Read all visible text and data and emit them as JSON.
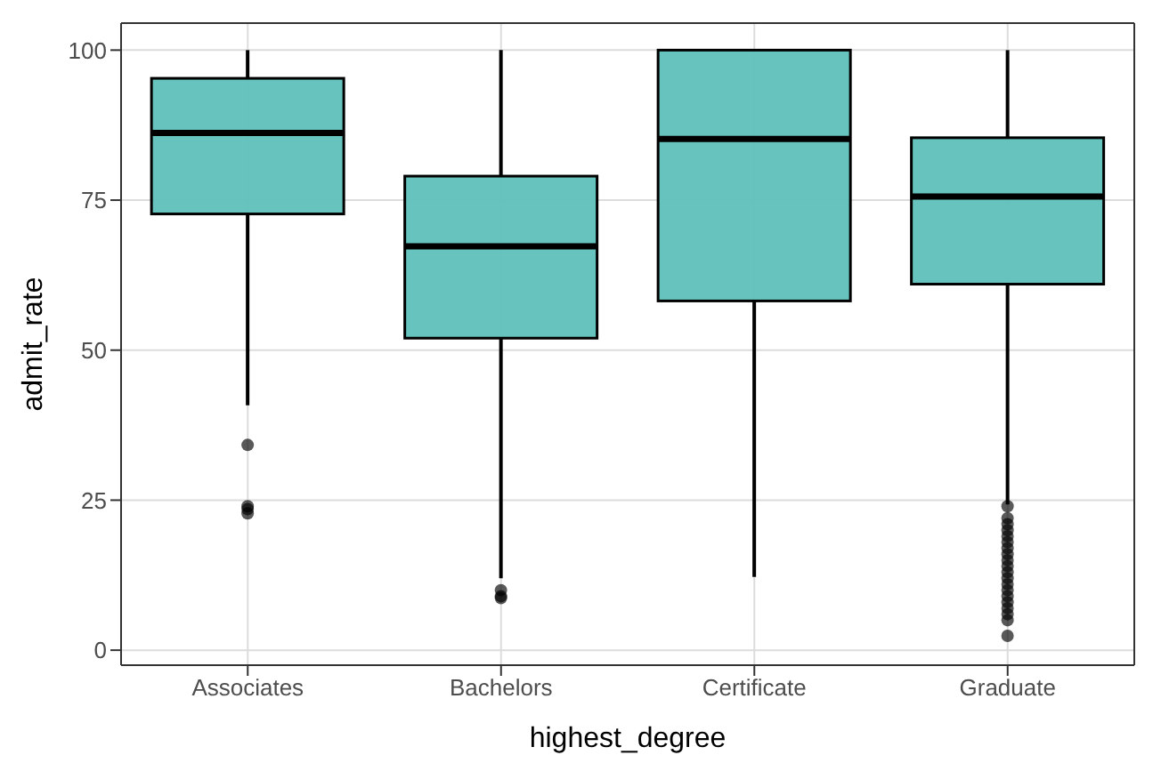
{
  "chart_data": {
    "type": "box",
    "xlabel": "highest_degree",
    "ylabel": "admit_rate",
    "categories": [
      "Associates",
      "Bachelors",
      "Certificate",
      "Graduate"
    ],
    "color": "#5fc0b9",
    "boxes": [
      {
        "low": 40.8,
        "q1": 72.7,
        "median": 86.2,
        "q3": 95.3,
        "high": 100,
        "outliers": [
          34.2,
          24,
          23.5,
          22.8
        ]
      },
      {
        "low": 12,
        "q1": 52,
        "median": 67.3,
        "q3": 79,
        "high": 100,
        "outliers": [
          10,
          9,
          8.7
        ]
      },
      {
        "low": 12.2,
        "q1": 58.2,
        "median": 85.2,
        "q3": 100,
        "high": 100
      },
      {
        "low": 24.3,
        "q1": 61,
        "median": 75.6,
        "q3": 85.4,
        "high": 100,
        "outliers": [
          24,
          22,
          21,
          20,
          19,
          18,
          17,
          16,
          15,
          14,
          13,
          12,
          11,
          10,
          9,
          8,
          7,
          6,
          5,
          2.4
        ]
      }
    ],
    "ylim": [
      -2.5,
      104.5
    ],
    "yticks": [
      0,
      25,
      50,
      75,
      100
    ],
    "grid": true
  }
}
